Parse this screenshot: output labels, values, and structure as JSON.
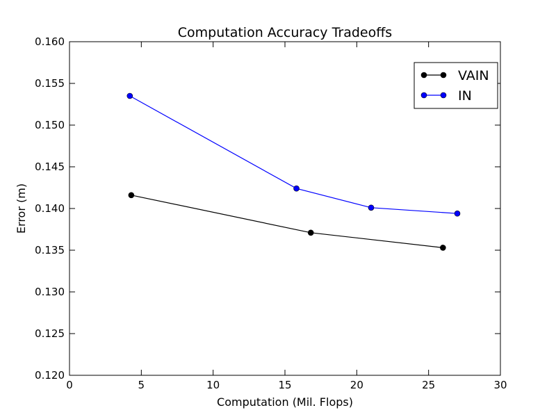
{
  "chart_data": {
    "type": "line",
    "title": "Computation Accuracy Tradeoffs",
    "xlabel": "Computation (Mil. Flops)",
    "ylabel": "Error (m)",
    "xlim": [
      0,
      30
    ],
    "ylim": [
      0.12,
      0.16
    ],
    "x_ticks": [
      0,
      5,
      10,
      15,
      20,
      25,
      30
    ],
    "x_tick_labels": [
      "0",
      "5",
      "10",
      "15",
      "20",
      "25",
      "30"
    ],
    "y_ticks": [
      0.12,
      0.125,
      0.13,
      0.135,
      0.14,
      0.145,
      0.15,
      0.155,
      0.16
    ],
    "y_tick_labels": [
      "0.120",
      "0.125",
      "0.130",
      "0.135",
      "0.140",
      "0.145",
      "0.150",
      "0.155",
      "0.160"
    ],
    "grid": false,
    "legend_position": "top-right",
    "series": [
      {
        "name": "VAIN",
        "color": "#000000",
        "marker": "circle",
        "x": [
          4.3,
          16.8,
          26.0
        ],
        "y": [
          0.1416,
          0.1371,
          0.1353
        ]
      },
      {
        "name": "IN",
        "color": "#0000ff",
        "marker": "circle",
        "x": [
          4.2,
          15.8,
          21.0,
          27.0
        ],
        "y": [
          0.1535,
          0.1424,
          0.1401,
          0.1394
        ]
      }
    ]
  }
}
